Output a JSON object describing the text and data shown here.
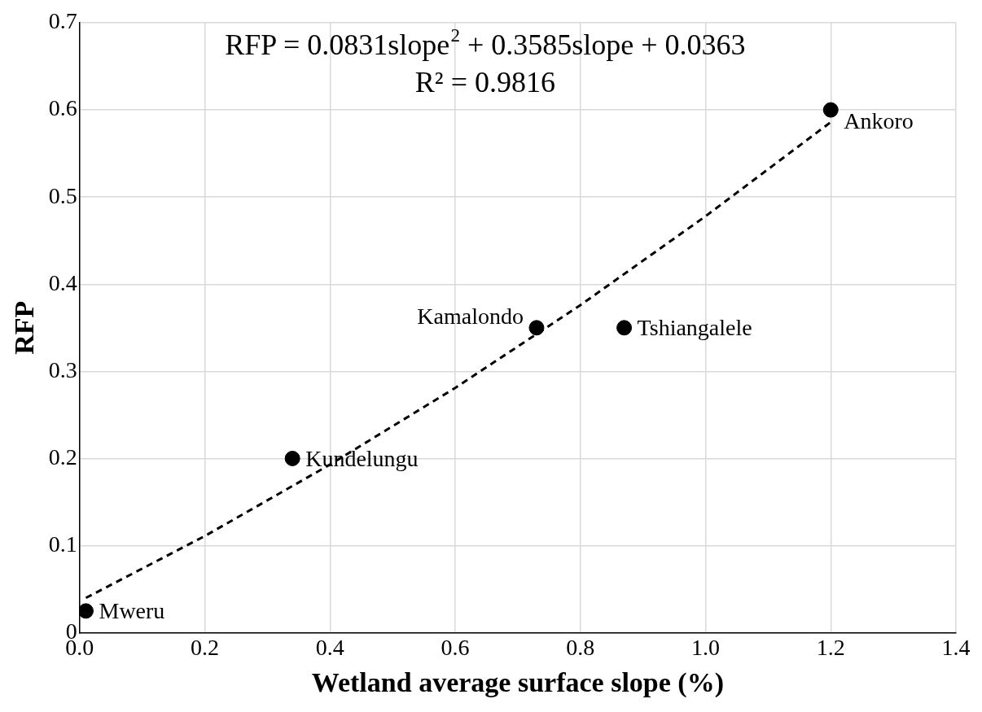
{
  "chart_data": {
    "type": "scatter",
    "xlabel": "Wetland average surface slope (%)",
    "ylabel": "RFP",
    "xlim": [
      0,
      1.4
    ],
    "xticks": [
      {
        "value": 0,
        "label": "0.0"
      },
      {
        "value": 0.2,
        "label": "0.2"
      },
      {
        "value": 0.4,
        "label": "0.4"
      },
      {
        "value": 0.6,
        "label": "0.6"
      },
      {
        "value": 0.8,
        "label": "0.8"
      },
      {
        "value": 1,
        "label": "1.0"
      },
      {
        "value": 1.2,
        "label": "1.2"
      },
      {
        "value": 1.4,
        "label": "1.4"
      }
    ],
    "ylim": [
      0,
      0.7
    ],
    "yticks": [
      0,
      0.1,
      0.2,
      0.3,
      0.4,
      0.5,
      0.6,
      0.7
    ],
    "grid": true,
    "legend": false,
    "marker": "circle",
    "series": [
      {
        "color": "#000000",
        "x": [
          0.01,
          0.34,
          0.73,
          0.87,
          1.2
        ],
        "values": [
          0.025,
          0.2,
          0.35,
          0.35,
          0.6
        ]
      },
      {
        "type": "line",
        "color": "#000000",
        "line_style": "dashed",
        "marker": "none",
        "x": [
          0.01,
          0.2,
          0.4,
          0.6,
          0.8,
          1.0,
          1.2
        ],
        "values": [
          0.04,
          0.111,
          0.193,
          0.281,
          0.376,
          0.478,
          0.586
        ]
      }
    ],
    "annotations": [
      "RFP = 0.0831slope$^{2}$ + 0.3585slope + 0.0363",
      "R² = 0.9816",
      {
        "text": "Mweru",
        "x": 0.01,
        "y": 0.025
      },
      {
        "text": "Kundelungu",
        "x": 0.34,
        "y": 0.2
      },
      {
        "text": "Kamalondo",
        "x": 0.73,
        "y": 0.35
      },
      {
        "text": "Tshiangalele",
        "x": 0.87,
        "y": 0.35
      },
      {
        "text": "Ankoro",
        "x": 1.2,
        "y": 0.6
      }
    ]
  }
}
